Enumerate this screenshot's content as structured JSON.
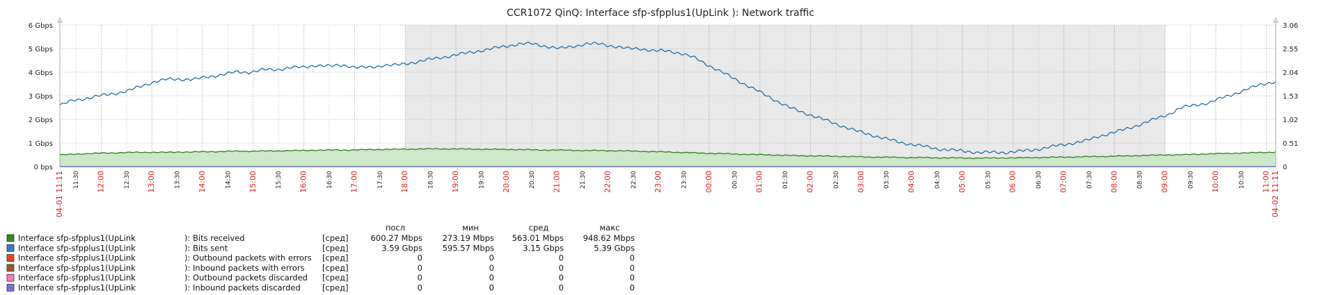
{
  "chart_data": {
    "type": "line",
    "title": "CCR1072 QinQ: Interface sfp-sfpplus1(UpLink        ): Network traffic",
    "y_left": {
      "ticks": [
        "6 Gbps",
        "5 Gbps",
        "4 Gbps",
        "3 Gbps",
        "2 Gbps",
        "1 Gbps",
        "0 bps"
      ],
      "range_gbps": [
        0,
        6
      ]
    },
    "y_right": {
      "ticks": [
        "3.06",
        "2.55",
        "2.04",
        "1.53",
        "1.02",
        "0.51",
        "0"
      ]
    },
    "x_labels": [
      {
        "t": "04-01 11:11",
        "h": true
      },
      {
        "t": "11:30",
        "h": false
      },
      {
        "t": "12:00",
        "h": true
      },
      {
        "t": "12:30",
        "h": false
      },
      {
        "t": "13:00",
        "h": true
      },
      {
        "t": "13:30",
        "h": false
      },
      {
        "t": "14:00",
        "h": true
      },
      {
        "t": "14:30",
        "h": false
      },
      {
        "t": "15:00",
        "h": true
      },
      {
        "t": "15:30",
        "h": false
      },
      {
        "t": "16:00",
        "h": true
      },
      {
        "t": "16:30",
        "h": false
      },
      {
        "t": "17:00",
        "h": true
      },
      {
        "t": "17:30",
        "h": false
      },
      {
        "t": "18:00",
        "h": true
      },
      {
        "t": "18:30",
        "h": false
      },
      {
        "t": "19:00",
        "h": true
      },
      {
        "t": "19:30",
        "h": false
      },
      {
        "t": "20:00",
        "h": true
      },
      {
        "t": "20:30",
        "h": false
      },
      {
        "t": "21:00",
        "h": true
      },
      {
        "t": "21:30",
        "h": false
      },
      {
        "t": "22:00",
        "h": true
      },
      {
        "t": "22:30",
        "h": false
      },
      {
        "t": "23:00",
        "h": true
      },
      {
        "t": "23:30",
        "h": false
      },
      {
        "t": "00:00",
        "h": true
      },
      {
        "t": "00:30",
        "h": false
      },
      {
        "t": "01:00",
        "h": true
      },
      {
        "t": "01:30",
        "h": false
      },
      {
        "t": "02:00",
        "h": true
      },
      {
        "t": "02:30",
        "h": false
      },
      {
        "t": "03:00",
        "h": true
      },
      {
        "t": "03:30",
        "h": false
      },
      {
        "t": "04:00",
        "h": true
      },
      {
        "t": "04:30",
        "h": false
      },
      {
        "t": "05:00",
        "h": true
      },
      {
        "t": "05:30",
        "h": false
      },
      {
        "t": "06:00",
        "h": true
      },
      {
        "t": "06:30",
        "h": false
      },
      {
        "t": "07:00",
        "h": true
      },
      {
        "t": "07:30",
        "h": false
      },
      {
        "t": "08:00",
        "h": true
      },
      {
        "t": "08:30",
        "h": false
      },
      {
        "t": "09:00",
        "h": true
      },
      {
        "t": "09:30",
        "h": false
      },
      {
        "t": "10:00",
        "h": true
      },
      {
        "t": "10:30",
        "h": false
      },
      {
        "t": "11:00",
        "h": true
      },
      {
        "t": "04-02 11:11",
        "h": true
      }
    ],
    "shaded_range": [
      "18:00",
      "09:00"
    ],
    "series_sent_gbps": [
      2.6,
      2.8,
      2.9,
      3.0,
      3.1,
      3.2,
      3.4,
      3.6,
      3.7,
      3.7,
      3.7,
      3.8,
      3.9,
      4.0,
      4.0,
      4.1,
      4.1,
      4.2,
      4.2,
      4.3,
      4.25,
      4.3,
      4.2,
      4.2,
      4.3,
      4.3,
      4.4,
      4.5,
      4.6,
      4.7,
      4.8,
      4.9,
      5.0,
      5.1,
      5.2,
      5.2,
      5.1,
      5.0,
      5.1,
      5.2,
      5.2,
      5.1,
      5.0,
      5.0,
      4.9,
      4.9,
      4.8,
      4.6,
      4.3,
      4.0,
      3.7,
      3.4,
      3.1,
      2.8,
      2.5,
      2.3,
      2.1,
      1.9,
      1.7,
      1.5,
      1.35,
      1.2,
      1.05,
      0.95,
      0.85,
      0.75,
      0.7,
      0.65,
      0.6,
      0.6,
      0.6,
      0.65,
      0.7,
      0.8,
      0.9,
      1.0,
      1.1,
      1.3,
      1.45,
      1.6,
      1.8,
      2.0,
      2.2,
      2.5,
      2.6,
      2.7,
      2.9,
      3.1,
      3.3,
      3.5,
      3.6
    ],
    "series_received_gbps": [
      0.5,
      0.52,
      0.55,
      0.57,
      0.58,
      0.6,
      0.6,
      0.61,
      0.6,
      0.62,
      0.62,
      0.63,
      0.64,
      0.65,
      0.65,
      0.66,
      0.66,
      0.68,
      0.68,
      0.7,
      0.7,
      0.7,
      0.71,
      0.72,
      0.73,
      0.73,
      0.74,
      0.75,
      0.75,
      0.75,
      0.74,
      0.74,
      0.73,
      0.73,
      0.72,
      0.71,
      0.7,
      0.7,
      0.69,
      0.68,
      0.68,
      0.67,
      0.66,
      0.65,
      0.63,
      0.62,
      0.6,
      0.58,
      0.56,
      0.55,
      0.53,
      0.52,
      0.5,
      0.49,
      0.47,
      0.46,
      0.45,
      0.44,
      0.43,
      0.42,
      0.4,
      0.4,
      0.39,
      0.38,
      0.38,
      0.37,
      0.37,
      0.36,
      0.36,
      0.36,
      0.37,
      0.37,
      0.38,
      0.39,
      0.4,
      0.41,
      0.42,
      0.43,
      0.44,
      0.45,
      0.47,
      0.48,
      0.5,
      0.5,
      0.52,
      0.54,
      0.55,
      0.57,
      0.58,
      0.6,
      0.62
    ]
  },
  "legend": {
    "headers": {
      "last": "посл",
      "min": "мин",
      "avg": "сред",
      "max": "макс"
    },
    "rows": [
      {
        "color": "#2e8b22",
        "interface": "Interface sfp-sfpplus1(UpLink",
        "metric": "): Bits received",
        "func": "[сред]",
        "last": "600.27 Mbps",
        "min": "273.19 Mbps",
        "avg": "563.01 Mbps",
        "max": "948.62 Mbps"
      },
      {
        "color": "#2f7fc1",
        "interface": "Interface sfp-sfpplus1(UpLink",
        "metric": "): Bits sent",
        "func": "[сред]",
        "last": "3.59 Gbps",
        "min": "595.57 Mbps",
        "avg": "3.15 Gbps",
        "max": "5.39 Gbps"
      },
      {
        "color": "#e8421d",
        "interface": "Interface sfp-sfpplus1(UpLink",
        "metric": "): Outbound packets with errors",
        "func": "[сред]",
        "last": "0",
        "min": "0",
        "avg": "0",
        "max": "0"
      },
      {
        "color": "#9b5a2a",
        "interface": "Interface sfp-sfpplus1(UpLink",
        "metric": "): Inbound packets with errors",
        "func": "[сред]",
        "last": "0",
        "min": "0",
        "avg": "0",
        "max": "0"
      },
      {
        "color": "#f27ab5",
        "interface": "Interface sfp-sfpplus1(UpLink",
        "metric": "): Outbound packets discarded",
        "func": "[сред]",
        "last": "0",
        "min": "0",
        "avg": "0",
        "max": "0"
      },
      {
        "color": "#7c70dd",
        "interface": "Interface sfp-sfpplus1(UpLink",
        "metric": "): Inbound packets discarded",
        "func": "[сред]",
        "last": "0",
        "min": "0",
        "avg": "0",
        "max": "0"
      }
    ]
  }
}
